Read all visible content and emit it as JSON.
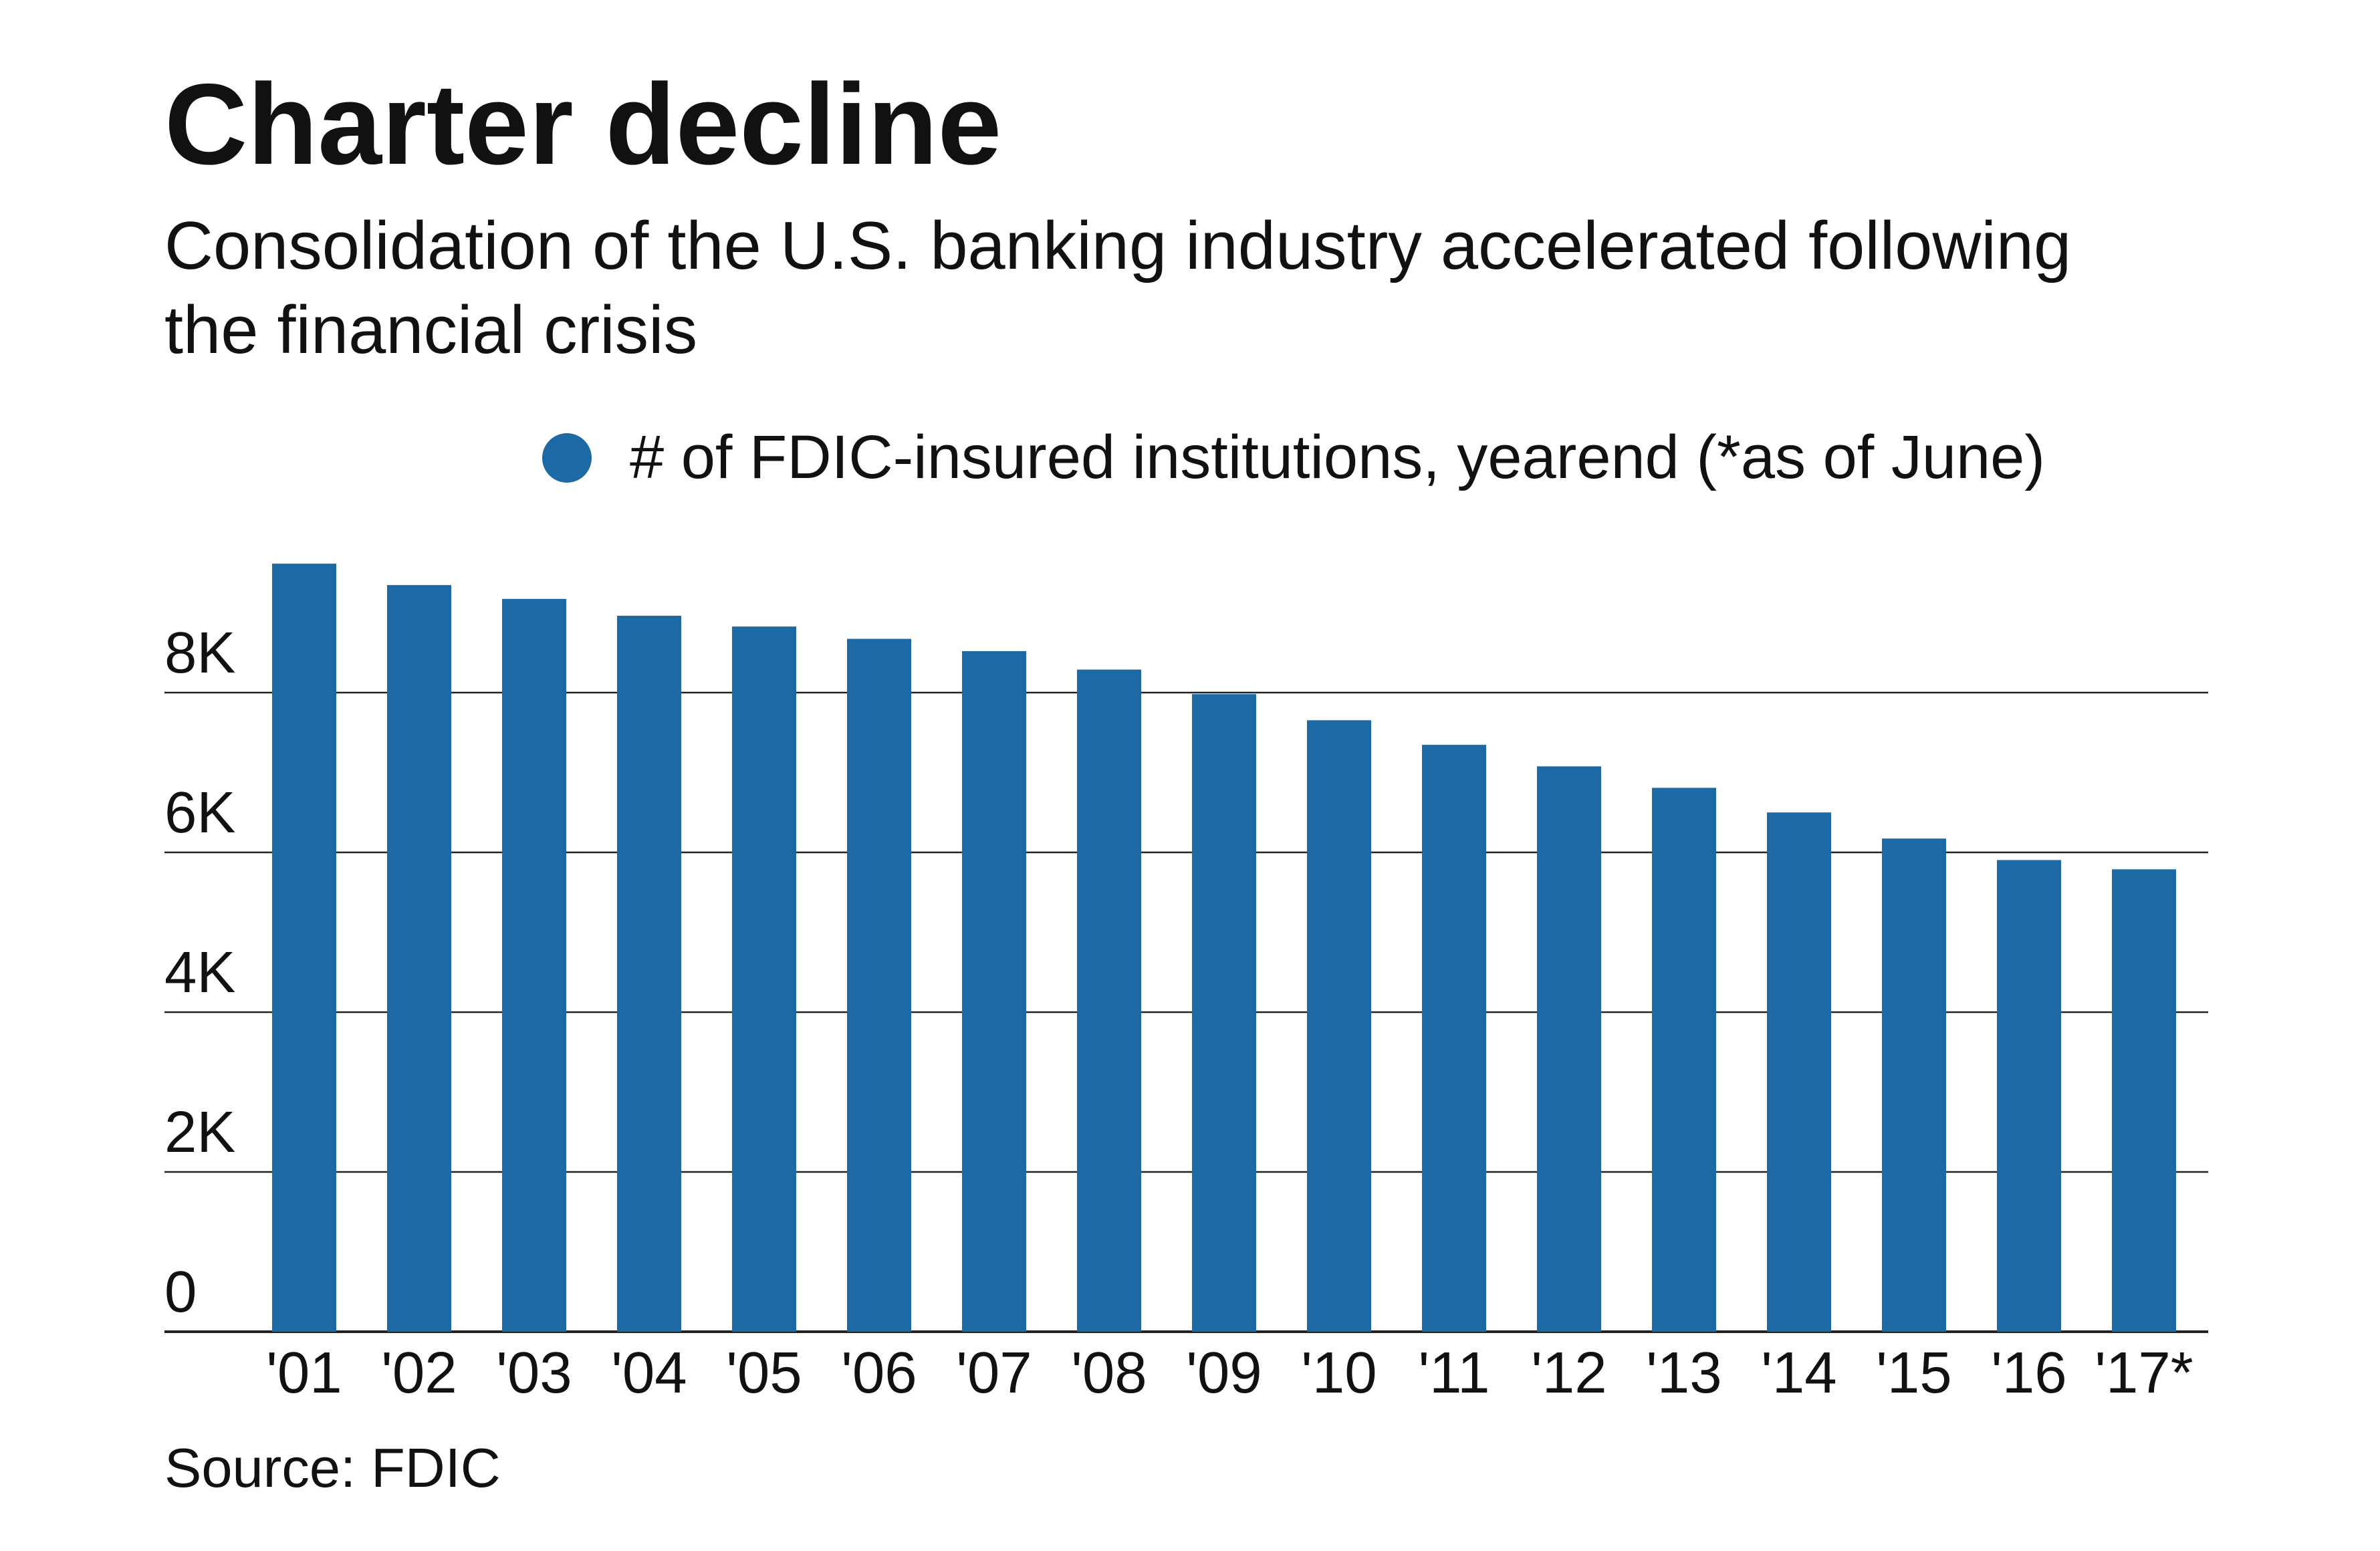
{
  "chart_data": {
    "type": "bar",
    "title": "Charter decline",
    "subtitle": "Consolidation of the U.S. banking industry accelerated following the financial crisis",
    "legend": "# of FDIC-insured institutions, yearend (*as of June)",
    "source": "Source: FDIC",
    "categories": [
      "'01",
      "'02",
      "'03",
      "'04",
      "'05",
      "'06",
      "'07",
      "'08",
      "'09",
      "'10",
      "'11",
      "'12",
      "'13",
      "'14",
      "'15",
      "'16",
      "'17*"
    ],
    "values": [
      9614,
      9346,
      9173,
      8962,
      8827,
      8673,
      8519,
      8288,
      7981,
      7654,
      7346,
      7077,
      6808,
      6500,
      6173,
      5904,
      5788
    ],
    "color": "#1d69a3",
    "ylim": [
      0,
      10000
    ],
    "yticks": [
      0,
      {
        "value": 2000,
        "label": "2K"
      },
      {
        "value": 4000,
        "label": "4K"
      },
      {
        "value": 6000,
        "label": "6K"
      },
      {
        "value": 8000,
        "label": "8K"
      }
    ],
    "grid": true
  }
}
